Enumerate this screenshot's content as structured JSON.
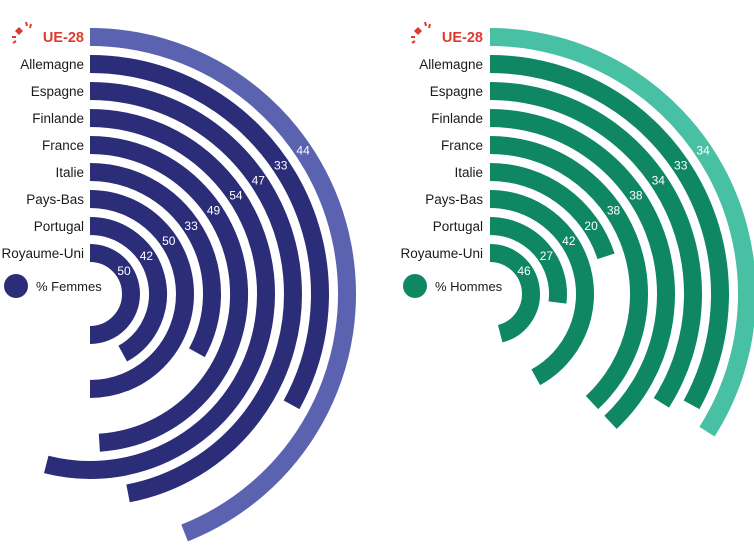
{
  "chart_data": [
    {
      "type": "radial-bar",
      "legend": "% Femmes",
      "categories": [
        "UE-28",
        "Allemagne",
        "Espagne",
        "Finlande",
        "France",
        "Italie",
        "Pays-Bas",
        "Portugal",
        "Royaume-Uni"
      ],
      "values": [
        44,
        33,
        47,
        54,
        49,
        33,
        50,
        42,
        50
      ],
      "colors": {
        "highlight": "#5b62b0",
        "bar": "#2b2d78",
        "legend_dot": "#2b2d78"
      }
    },
    {
      "type": "radial-bar",
      "legend": "% Hommes",
      "categories": [
        "UE-28",
        "Allemagne",
        "Espagne",
        "Finlande",
        "France",
        "Italie",
        "Pays-Bas",
        "Portugal",
        "Royaume-Uni"
      ],
      "values": [
        34,
        33,
        34,
        38,
        38,
        20,
        42,
        27,
        46
      ],
      "colors": {
        "highlight": "#48c0a3",
        "bar": "#0f8763",
        "legend_dot": "#0f8763"
      }
    }
  ],
  "colors": {
    "eu_label": "#e03a2f",
    "text": "#1a1a1a"
  },
  "icons": {
    "eu_marker": "star-burst-icon"
  }
}
